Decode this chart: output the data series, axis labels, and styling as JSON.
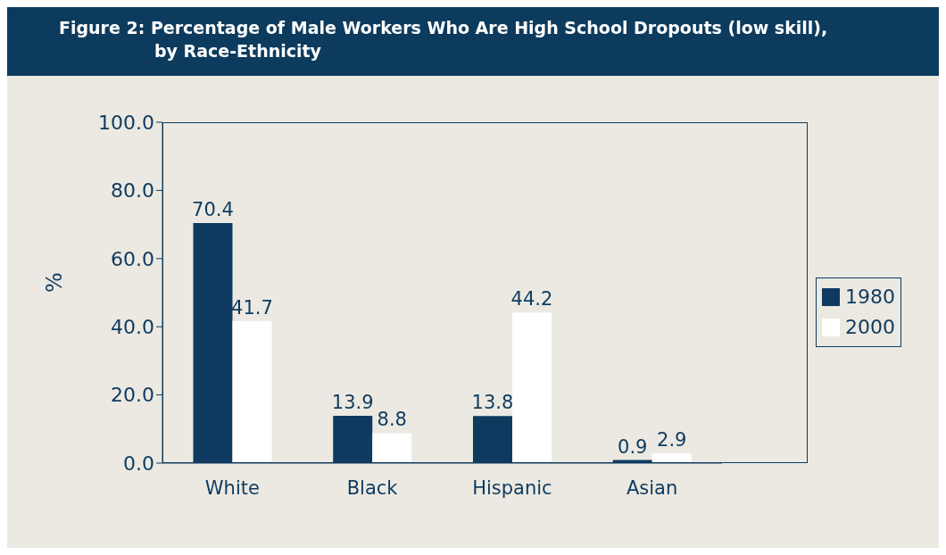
{
  "chart_data": {
    "type": "bar",
    "title": "Figure 2:  Percentage of Male Workers Who Are High School Dropouts (low skill),\nby Race-Ethnicity",
    "ylabel": "%",
    "categories": [
      "White",
      "Black",
      "Hispanic",
      "Asian"
    ],
    "series": [
      {
        "name": "1980",
        "color": "#0e3a5f",
        "values": [
          70.4,
          13.9,
          13.8,
          0.9
        ]
      },
      {
        "name": "2000",
        "color": "#ffffff",
        "values": [
          41.7,
          8.8,
          44.2,
          2.9
        ]
      }
    ],
    "ylim": [
      0,
      100
    ],
    "yticks": [
      {
        "value": 0,
        "label": "0.0"
      },
      {
        "value": 20,
        "label": "20.0"
      },
      {
        "value": 40,
        "label": "40.0"
      },
      {
        "value": 60,
        "label": "60.0"
      },
      {
        "value": 80,
        "label": "80.0"
      },
      {
        "value": 100,
        "label": "100.0"
      }
    ],
    "data_labels": true,
    "legend": "right",
    "grid": false
  }
}
